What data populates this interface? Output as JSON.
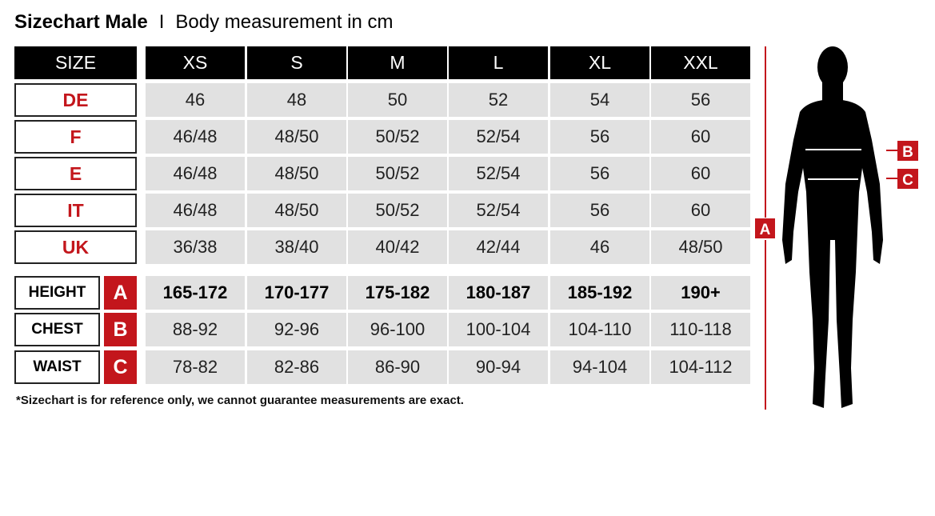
{
  "title": {
    "bold": "Sizechart Male",
    "separator": "I",
    "subtitle": "Body measurement in cm"
  },
  "size_label": "SIZE",
  "sizes": [
    "XS",
    "S",
    "M",
    "L",
    "XL",
    "XXL"
  ],
  "conversion_rows": [
    {
      "label": "DE",
      "values": [
        "46",
        "48",
        "50",
        "52",
        "54",
        "56"
      ]
    },
    {
      "label": "F",
      "values": [
        "46/48",
        "48/50",
        "50/52",
        "52/54",
        "56",
        "60"
      ]
    },
    {
      "label": "E",
      "values": [
        "46/48",
        "48/50",
        "50/52",
        "52/54",
        "56",
        "60"
      ]
    },
    {
      "label": "IT",
      "values": [
        "46/48",
        "48/50",
        "50/52",
        "52/54",
        "56",
        "60"
      ]
    },
    {
      "label": "UK",
      "values": [
        "36/38",
        "38/40",
        "40/42",
        "42/44",
        "46",
        "48/50"
      ]
    }
  ],
  "measurement_rows": [
    {
      "label": "HEIGHT",
      "letter": "A",
      "values": [
        "165-172",
        "170-177",
        "175-182",
        "180-187",
        "185-192",
        "190+"
      ]
    },
    {
      "label": "CHEST",
      "letter": "B",
      "values": [
        "88-92",
        "92-96",
        "96-100",
        "100-104",
        "104-110",
        "110-118"
      ]
    },
    {
      "label": "WAIST",
      "letter": "C",
      "values": [
        "78-82",
        "82-86",
        "86-90",
        "90-94",
        "94-104",
        "104-112"
      ]
    }
  ],
  "footnote": "*Sizechart is for reference only, we cannot guarantee measurements are exact.",
  "figure": {
    "height_marker": "A",
    "chest_marker": "B",
    "waist_marker": "C"
  },
  "colors": {
    "accent": "#c3161c",
    "header": "#000000",
    "cell": "#e1e1e1"
  }
}
